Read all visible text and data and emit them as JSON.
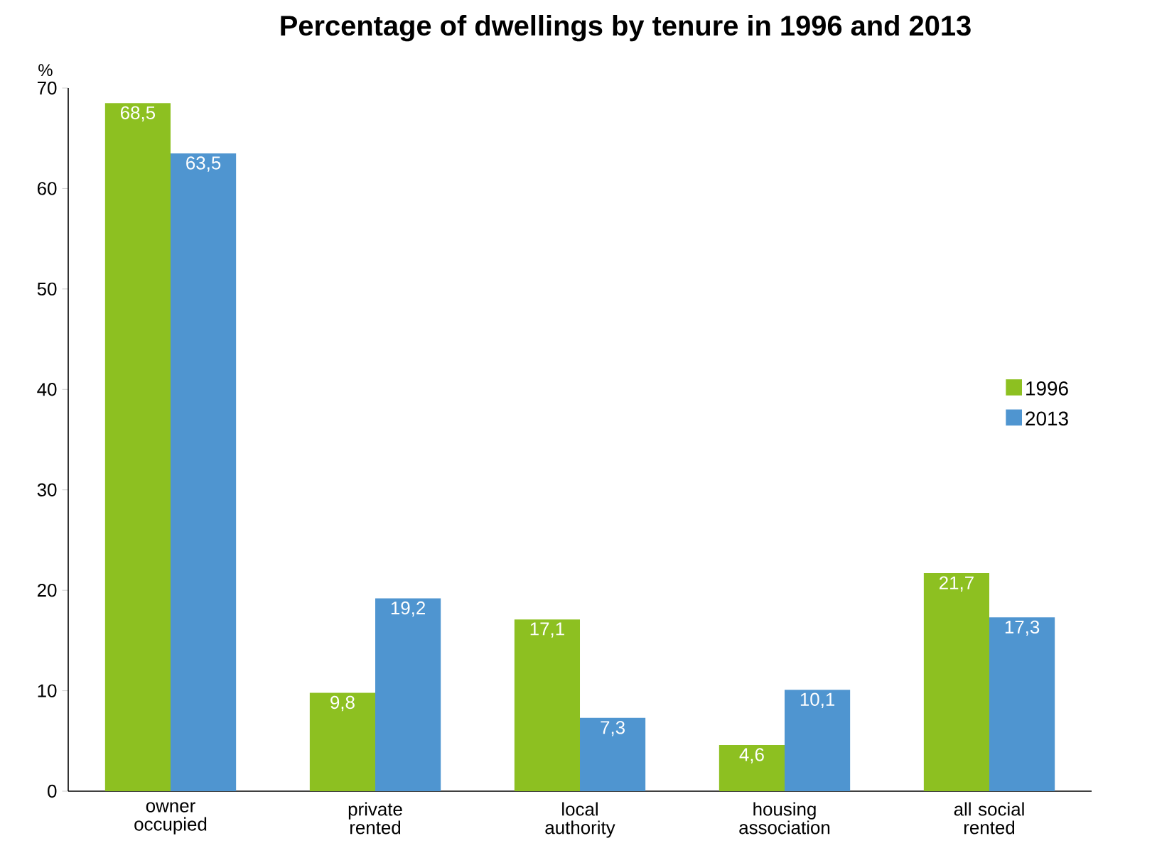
{
  "chart_data": {
    "type": "bar",
    "title": "Percentage of dwellings by tenure in 1996 and 2013",
    "ylabel": "%",
    "categories": [
      "owner occupied",
      "private rented",
      "local authority",
      "housing association",
      "all social rented"
    ],
    "series": [
      {
        "name": "1996",
        "color": "#8dc021",
        "values": [
          68.5,
          9.8,
          17.1,
          4.6,
          21.7
        ],
        "value_labels": [
          "68,5",
          "9,8",
          "17,1",
          "4,6",
          "21,7"
        ]
      },
      {
        "name": "2013",
        "color": "#4f95d0",
        "values": [
          63.5,
          19.2,
          7.3,
          10.1,
          17.3
        ],
        "value_labels": [
          "63,5",
          "19,2",
          "7,3",
          "10,1",
          "17,3"
        ]
      }
    ],
    "ylim": [
      0,
      70
    ],
    "yticks": [
      0,
      10,
      20,
      30,
      40,
      50,
      60,
      70
    ],
    "grid": false,
    "legend": "right"
  }
}
